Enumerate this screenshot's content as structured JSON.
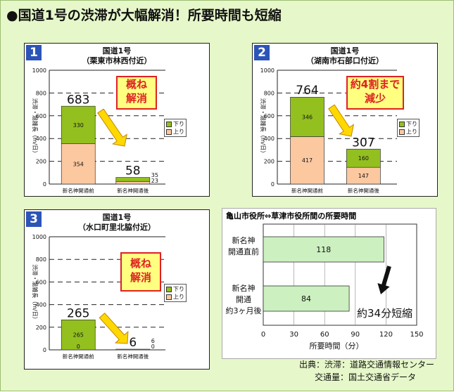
{
  "title": "●国道1号の渋滞が大幅解消！所要時間も短縮",
  "colors": {
    "background": "#e6f7c9",
    "after_part": "#93c01f",
    "before_part": "#fcc8a0",
    "callout_fill": "#ffff80",
    "callout_text": "#d22222",
    "number_badge": "#2c55b8",
    "hbar": "#ccf0c0"
  },
  "panels": [
    {
      "number": "1",
      "title_line1": "国道1号",
      "title_line2": "（栗東市林西付近）",
      "callout_line1": "概ね",
      "callout_line2": "解消"
    },
    {
      "number": "2",
      "title_line1": "国道1号",
      "title_line2": "（湖南市石部口付近）",
      "callout_line1": "約4割まで",
      "callout_line2": "減少"
    },
    {
      "number": "3",
      "title_line1": "国道1号",
      "title_line2": "（水口町里北脇付近）",
      "callout_line1": "概ね",
      "callout_line2": "解消"
    }
  ],
  "legend": {
    "down": "下り",
    "up": "上り"
  },
  "panel4": {
    "title": "亀山市役所⇔草津市役所間の所要時間",
    "annotation": "約34分短縮"
  },
  "source": {
    "line1": "出典：渋滞：道路交通情報センター",
    "line2": "交通量：国土交通省データ"
  },
  "chart_data": [
    {
      "type": "bar",
      "stacked": true,
      "title": "国道1号（栗東市林西付近）",
      "ylabel": "渋滞・混雑長（m/日）",
      "ylim": [
        0,
        1000
      ],
      "yticks": [
        0,
        200,
        400,
        600,
        800,
        1000
      ],
      "categories": [
        "新名神開通前",
        "新名神開通後"
      ],
      "series": [
        {
          "name": "上り",
          "values": [
            354,
            23
          ]
        },
        {
          "name": "下り",
          "values": [
            330,
            35
          ]
        }
      ],
      "totals": [
        683,
        58
      ],
      "legend_position": "right"
    },
    {
      "type": "bar",
      "stacked": true,
      "title": "国道1号（湖南市石部口付近）",
      "ylabel": "渋滞・混雑長（m/日）",
      "ylim": [
        0,
        1000
      ],
      "yticks": [
        0,
        200,
        400,
        600,
        800,
        1000
      ],
      "categories": [
        "新名神開通前",
        "新名神開通後"
      ],
      "series": [
        {
          "name": "上り",
          "values": [
            417,
            147
          ]
        },
        {
          "name": "下り",
          "values": [
            346,
            160
          ]
        }
      ],
      "totals": [
        764,
        307
      ],
      "legend_position": "right"
    },
    {
      "type": "bar",
      "stacked": true,
      "title": "国道1号（水口町里北脇付近）",
      "ylabel": "渋滞・混雑長（m/日）",
      "ylim": [
        0,
        1000
      ],
      "yticks": [
        0,
        200,
        400,
        600,
        800,
        1000
      ],
      "categories": [
        "新名神開通前",
        "新名神開通後"
      ],
      "series": [
        {
          "name": "上り",
          "values": [
            0,
            0
          ]
        },
        {
          "name": "下り",
          "values": [
            265,
            6
          ]
        }
      ],
      "totals": [
        265,
        6
      ],
      "legend_position": "right"
    },
    {
      "type": "bar",
      "orientation": "horizontal",
      "title": "亀山市役所⇔草津市役所間の所要時間",
      "xlabel": "所要時間（分）",
      "xlim": [
        0,
        150
      ],
      "xticks": [
        0,
        30,
        60,
        90,
        120,
        150
      ],
      "categories": [
        "新名神開通直前",
        "新名神開通約3ヶ月後"
      ],
      "category_lines": [
        [
          "新名神",
          "開通直前"
        ],
        [
          "新名神",
          "開通",
          "約3ヶ月後"
        ]
      ],
      "values": [
        118,
        84
      ]
    }
  ]
}
